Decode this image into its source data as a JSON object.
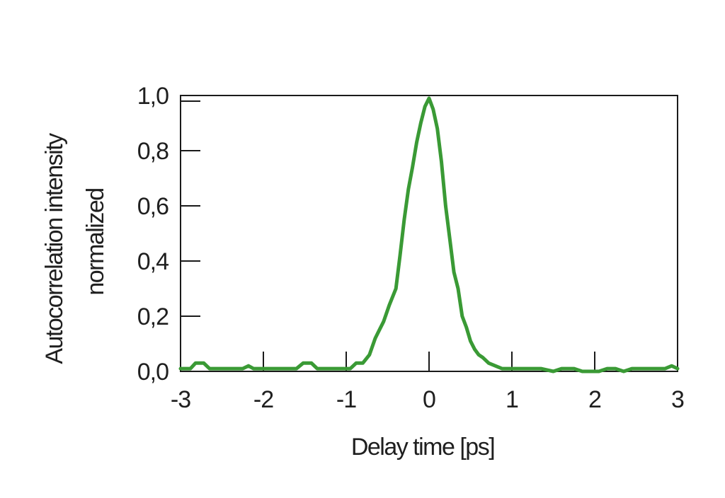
{
  "chart_data": {
    "type": "line",
    "title": "",
    "xlabel": "Delay time [ps]",
    "ylabel_lines": [
      "Autocorrelation intensity",
      "normalized"
    ],
    "xlim": [
      -3,
      3
    ],
    "ylim": [
      0,
      1.0
    ],
    "x_ticks": [
      -3,
      -2,
      -1,
      0,
      1,
      2,
      3
    ],
    "x_tick_labels": [
      "-3",
      "-2",
      "-1",
      "0",
      "1",
      "2",
      "3"
    ],
    "y_ticks": [
      0,
      0.2,
      0.4,
      0.6,
      0.8,
      1.0
    ],
    "y_tick_labels": [
      "0,0",
      "0,2",
      "0,4",
      "0,6",
      "0,8",
      "1,0"
    ],
    "grid": false,
    "legend": "none",
    "series": [
      {
        "color": "#3a9a35",
        "x": [
          -3.0,
          -2.88,
          -2.82,
          -2.72,
          -2.65,
          -2.55,
          -2.45,
          -2.35,
          -2.25,
          -2.18,
          -2.12,
          -2.0,
          -1.9,
          -1.8,
          -1.7,
          -1.6,
          -1.52,
          -1.42,
          -1.35,
          -1.25,
          -1.15,
          -1.05,
          -0.95,
          -0.88,
          -0.8,
          -0.72,
          -0.65,
          -0.6,
          -0.55,
          -0.48,
          -0.4,
          -0.35,
          -0.3,
          -0.25,
          -0.2,
          -0.15,
          -0.1,
          -0.05,
          0.0,
          0.05,
          0.1,
          0.15,
          0.2,
          0.25,
          0.3,
          0.35,
          0.4,
          0.45,
          0.5,
          0.55,
          0.6,
          0.65,
          0.72,
          0.8,
          0.88,
          0.95,
          1.05,
          1.2,
          1.35,
          1.5,
          1.6,
          1.68,
          1.75,
          1.85,
          1.95,
          2.05,
          2.15,
          2.25,
          2.35,
          2.45,
          2.55,
          2.65,
          2.75,
          2.85,
          2.93,
          3.0
        ],
        "y": [
          0.01,
          0.01,
          0.03,
          0.03,
          0.01,
          0.01,
          0.01,
          0.01,
          0.01,
          0.02,
          0.01,
          0.01,
          0.01,
          0.01,
          0.01,
          0.01,
          0.03,
          0.03,
          0.01,
          0.01,
          0.01,
          0.01,
          0.01,
          0.03,
          0.03,
          0.06,
          0.12,
          0.15,
          0.18,
          0.24,
          0.3,
          0.42,
          0.55,
          0.66,
          0.74,
          0.83,
          0.9,
          0.96,
          0.99,
          0.95,
          0.88,
          0.76,
          0.6,
          0.48,
          0.36,
          0.3,
          0.2,
          0.16,
          0.11,
          0.08,
          0.06,
          0.05,
          0.03,
          0.02,
          0.01,
          0.01,
          0.01,
          0.01,
          0.01,
          0.0,
          0.01,
          0.01,
          0.01,
          0.0,
          0.0,
          0.0,
          0.01,
          0.01,
          0.0,
          0.01,
          0.01,
          0.01,
          0.01,
          0.01,
          0.02,
          0.01
        ]
      }
    ]
  }
}
